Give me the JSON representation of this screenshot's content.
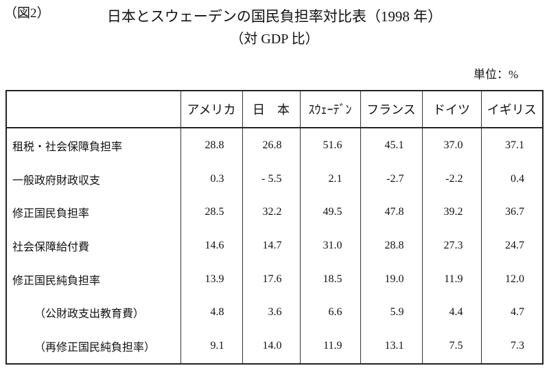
{
  "header": {
    "figure_label": "（図2）",
    "title": "日本とスウェーデンの国民負担率対比表（1998 年）",
    "subtitle": "（対 GDP 比）",
    "unit": "単位：%"
  },
  "table": {
    "columns": [
      "",
      "アメリカ",
      "日　本",
      "ｽｳｪｰﾃﾞﾝ",
      "フランス",
      "ドイツ",
      "イギリス"
    ],
    "rows": [
      [
        "租税・社会保障負担率",
        "28.8",
        "26.8",
        "51.6",
        "45.1",
        "37.0",
        "37.1"
      ],
      [
        "一般政府財政収支",
        "0.3",
        "- 5.5",
        "2.1",
        "-2.7",
        "-2.2",
        "0.4"
      ],
      [
        "修正国民負担率",
        "28.5",
        "32.2",
        "49.5",
        "47.8",
        "39.2",
        "36.7"
      ],
      [
        "社会保障給付費",
        "14.6",
        "14.7",
        "31.0",
        "28.8",
        "27.3",
        "24.7"
      ],
      [
        "修正国民純負担率",
        "13.9",
        "17.6",
        "18.5",
        "19.0",
        "11.9",
        "12.0"
      ],
      [
        "（公財政支出教育費）",
        "4.8",
        "3.6",
        "6.6",
        "5.9",
        "4.4",
        "4.7"
      ],
      [
        "（再修正国民純負担率）",
        "9.1",
        "14.0",
        "11.9",
        "13.1",
        "7.5",
        "7.3"
      ]
    ]
  }
}
